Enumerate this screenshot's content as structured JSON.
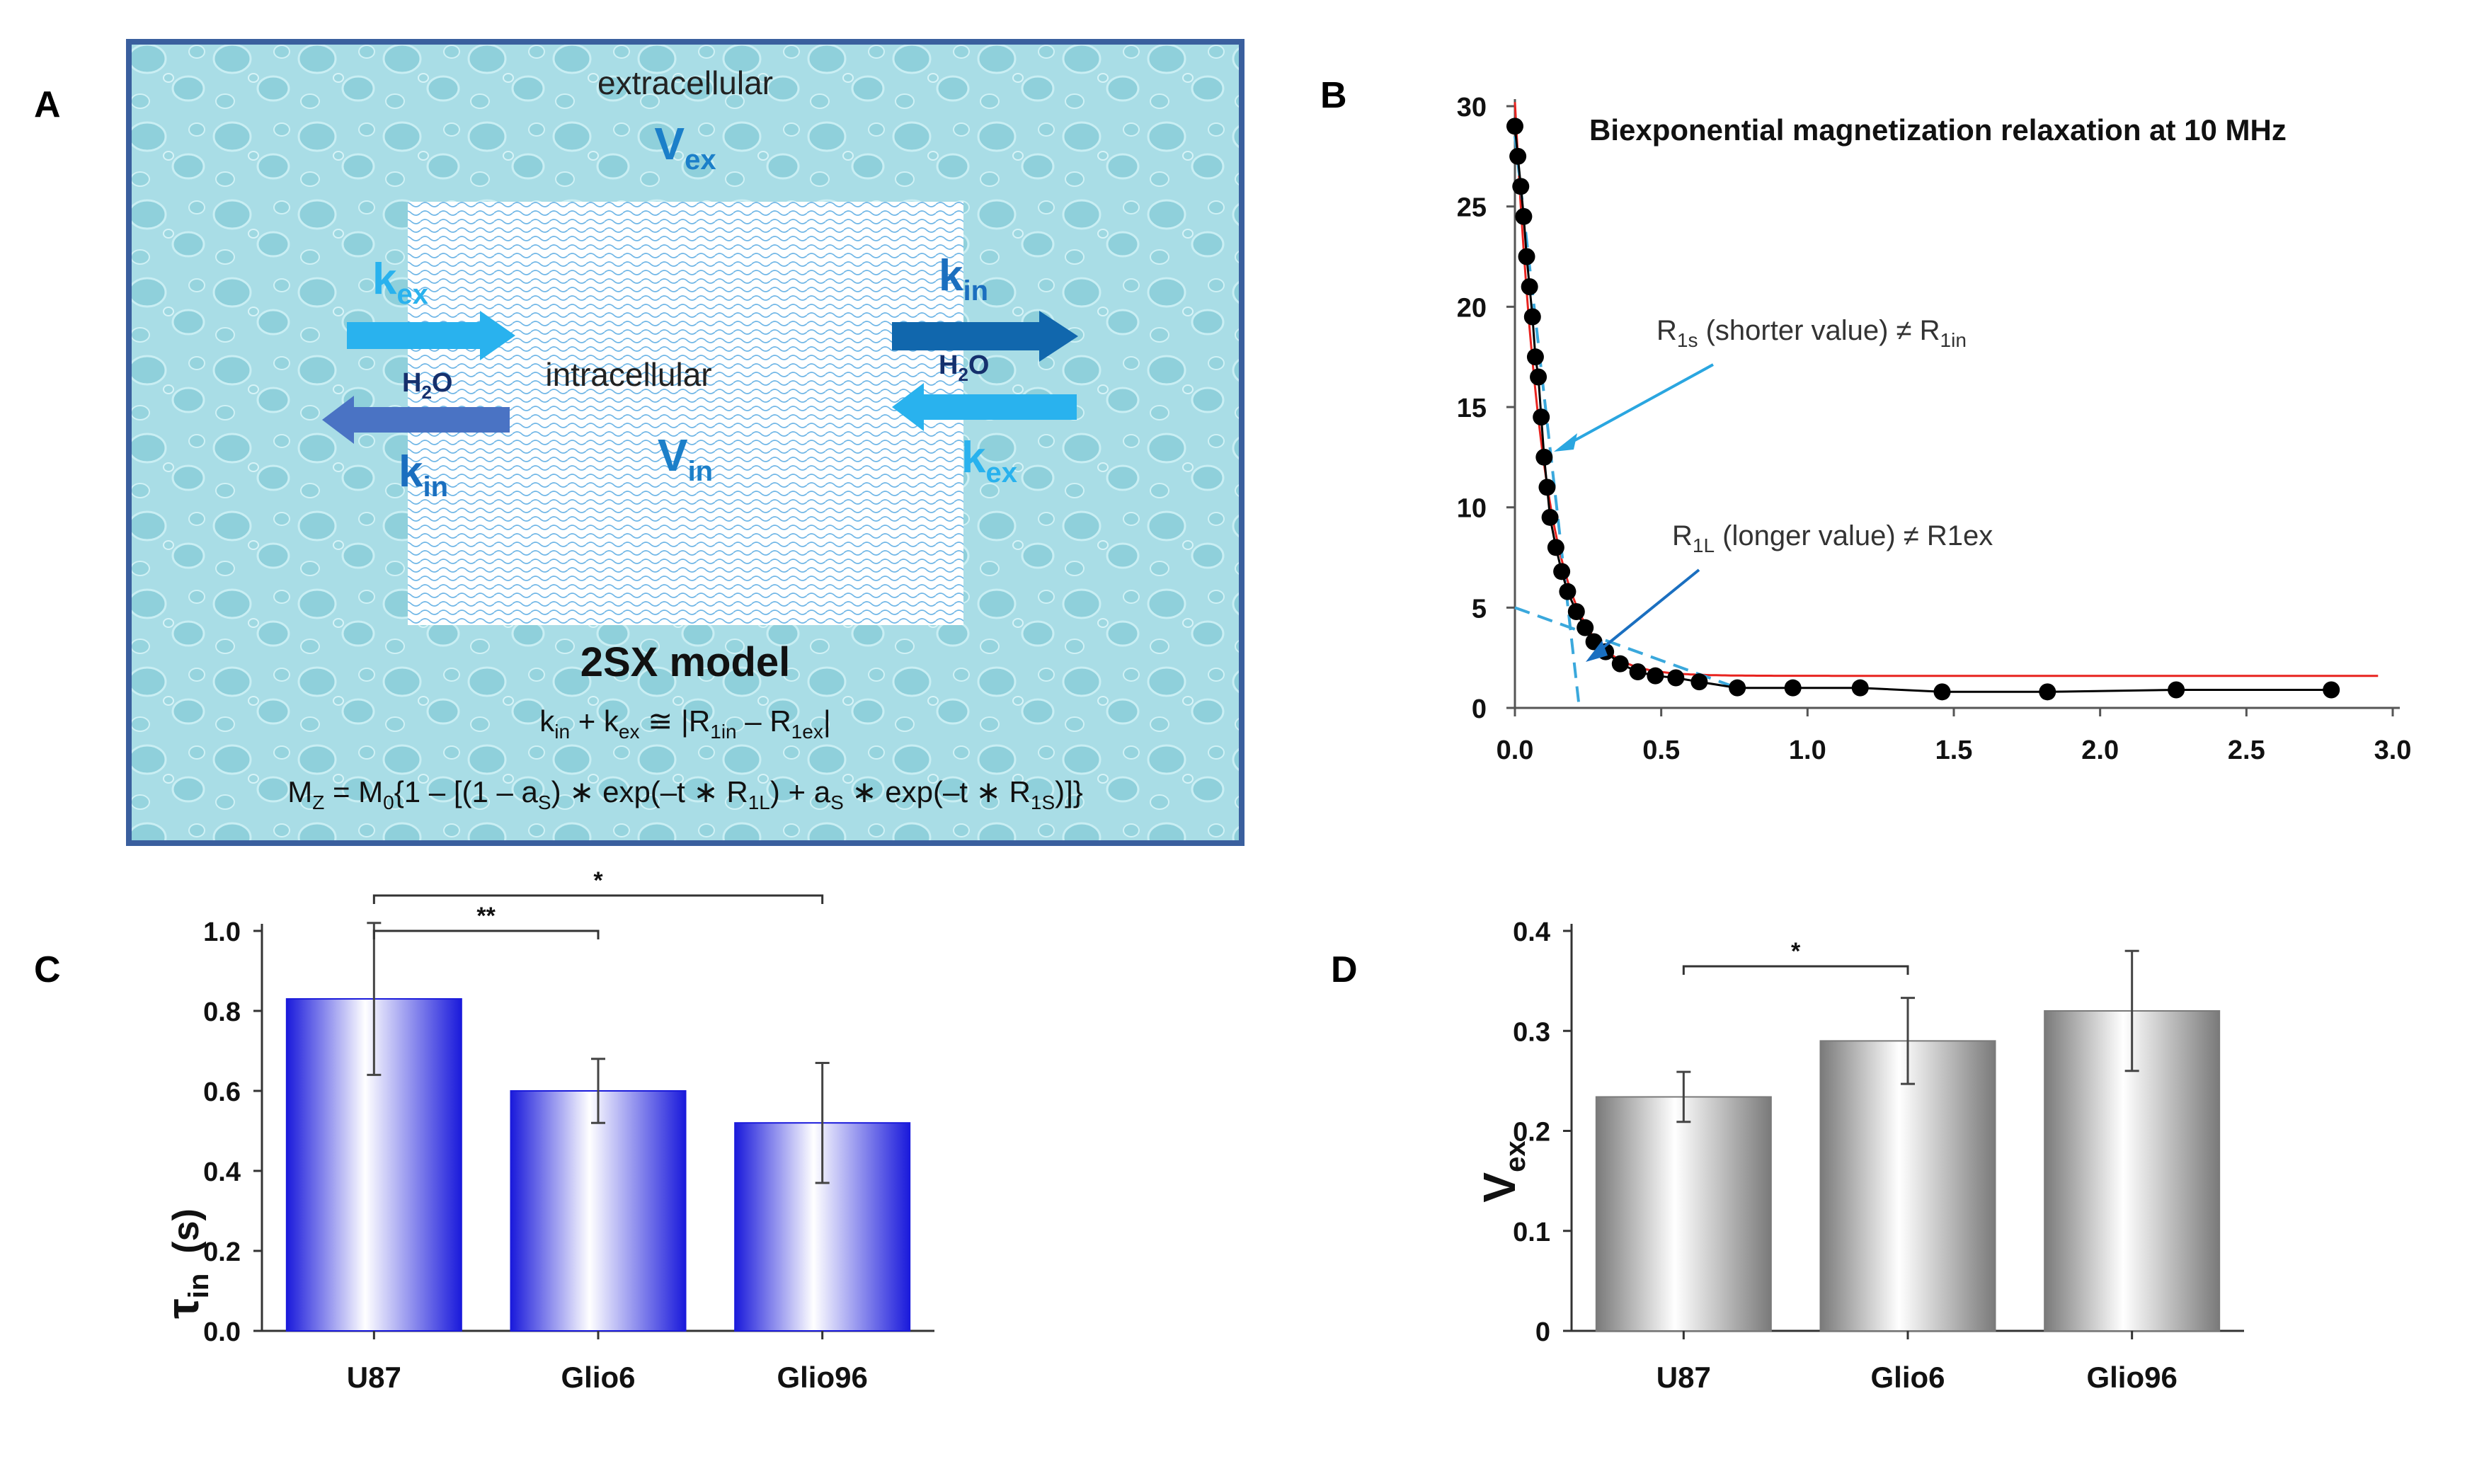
{
  "panel_labels": {
    "A": "A",
    "B": "B",
    "C": "C",
    "D": "D"
  },
  "panel_a": {
    "extracellular_label": "extracellular",
    "v_ex_main": "V",
    "v_ex_sub": "ex",
    "intracellular_label": "intracellular",
    "v_in_main": "V",
    "v_in_sub": "in",
    "arrow_label_left_top": {
      "main": "k",
      "sub": "ex"
    },
    "arrow_label_left_bottom": {
      "main": "k",
      "sub": "in"
    },
    "arrow_label_right_top": {
      "main": "k",
      "sub": "in"
    },
    "arrow_label_right_bottom": {
      "main": "k",
      "sub": "ex"
    },
    "h2o_left": {
      "pre": "H",
      "sub": "2",
      "post": "O"
    },
    "h2o_right": {
      "pre": "H",
      "sub": "2",
      "post": "O"
    },
    "model_title": "2SX model",
    "eq1": {
      "k": "k",
      "in": "in",
      "plus": " + k",
      "ex": "ex",
      "approx": "  ≅  |R",
      "r1in": "1in",
      "minus": " – R",
      "r1ex": "1ex",
      "close": "|"
    },
    "eq2": {
      "mz": "M",
      "z": "Z",
      "rest1": " = M",
      "zero": "0",
      "rest2": "{1 – [(1 – a",
      "s1": "S",
      "rest3": ") ∗ exp(–t ∗ R",
      "r1l": "1L",
      "rest4": ") + a",
      "s2": "S",
      "rest5": " ∗ exp(–t ∗ R",
      "r1s": "1S",
      "rest6": ")]}"
    },
    "colors": {
      "background": "#a9dde6",
      "border": "#3a5f9e",
      "inner_box": "#ffffff",
      "arrow_light": "#29b2ee",
      "arrow_dark": "#1167ad",
      "arrow_mid": "#4a73c4",
      "text_blue": "#1b7fc9"
    }
  },
  "panel_b": {
    "chart_data": {
      "type": "scatter",
      "title": "Biexponential magnetization relaxation at 10 MHz",
      "xlim": [
        0,
        3.0
      ],
      "ylim": [
        0,
        30
      ],
      "x_ticks": [
        "0.0",
        "0.5",
        "1.0",
        "1.5",
        "2.0",
        "2.5",
        "3.0"
      ],
      "y_ticks": [
        "0",
        "5",
        "10",
        "15",
        "20",
        "25",
        "30"
      ],
      "series": [
        {
          "x": [
            0.0,
            0.01,
            0.02,
            0.03,
            0.04,
            0.05,
            0.06,
            0.07,
            0.08,
            0.09,
            0.1,
            0.11,
            0.12,
            0.14,
            0.16,
            0.18,
            0.21,
            0.24,
            0.27,
            0.31,
            0.36,
            0.42,
            0.48,
            0.55,
            0.63,
            0.76,
            0.95,
            1.18,
            1.46,
            1.82,
            2.26,
            2.79
          ],
          "y": [
            29.0,
            27.5,
            26.0,
            24.5,
            22.5,
            21.0,
            19.5,
            17.5,
            16.5,
            14.5,
            12.5,
            11.0,
            9.5,
            8.0,
            6.8,
            5.8,
            4.8,
            4.0,
            3.3,
            2.8,
            2.2,
            1.8,
            1.6,
            1.5,
            1.3,
            1.0,
            1.0,
            1.0,
            0.8,
            0.8,
            0.9,
            0.9
          ]
        }
      ],
      "colors": {
        "points": "#000000",
        "fit_black": "#000000",
        "fit_red": "#e8231f",
        "dashed": "#3aa8dc"
      },
      "annotation_short": {
        "main": "R",
        "sub": "1s",
        "rest": " (shorter value) ≠ R",
        "sub2": "1in"
      },
      "annotation_long": {
        "main": "R",
        "sub": "1L",
        "rest": " (longer value) ≠ R1ex"
      }
    }
  },
  "panel_c": {
    "chart_data": {
      "type": "bar",
      "categories": [
        "U87",
        "Glio6",
        "Glio96"
      ],
      "values": [
        0.83,
        0.6,
        0.52
      ],
      "errors": [
        0.19,
        0.08,
        0.15
      ],
      "ylim": [
        0.0,
        1.0
      ],
      "y_ticks": [
        "0.0",
        "0.2",
        "0.4",
        "0.6",
        "0.8",
        "1.0"
      ],
      "ylabel_main": "τ",
      "ylabel_sub": "in",
      "ylabel_unit": "(s)",
      "significance": [
        {
          "from": 0,
          "to": 1,
          "label": "**"
        },
        {
          "from": 0,
          "to": 2,
          "label": "*"
        }
      ],
      "bar_color": "#1a1adb"
    }
  },
  "panel_d": {
    "chart_data": {
      "type": "bar",
      "categories": [
        "U87",
        "Glio6",
        "Glio96"
      ],
      "values": [
        0.234,
        0.29,
        0.32
      ],
      "errors": [
        0.025,
        0.043,
        0.06
      ],
      "ylim": [
        0,
        0.4
      ],
      "y_ticks": [
        "0",
        "0.1",
        "0.2",
        "0.3",
        "0.4"
      ],
      "ylabel_main": "V",
      "ylabel_sub": "ex",
      "significance": [
        {
          "from": 0,
          "to": 1,
          "label": "*"
        }
      ],
      "bar_color": "#7a7a7a"
    }
  }
}
